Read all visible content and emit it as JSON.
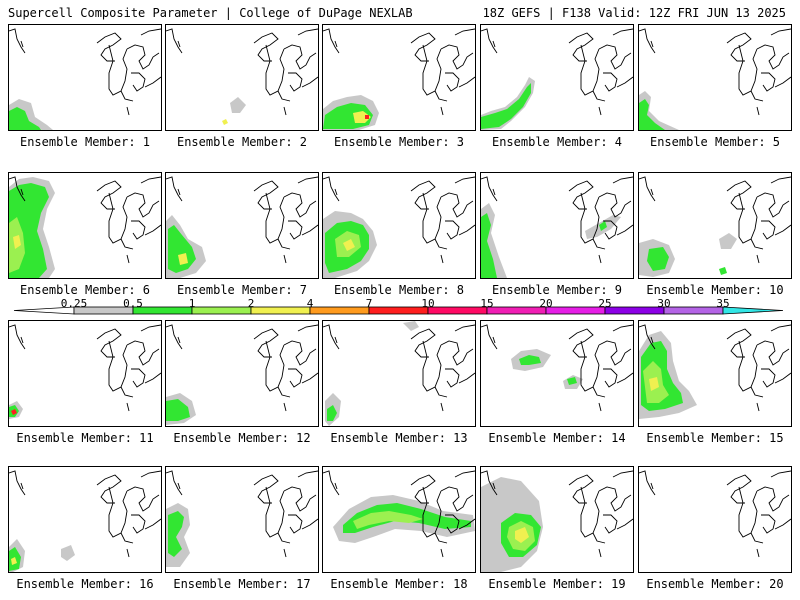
{
  "header": {
    "title": "Supercell Composite Parameter | College of DuPage NEXLAB",
    "run_info": "18Z GEFS | F138 Valid: 12Z FRI JUN 13 2025"
  },
  "members": [
    {
      "label": "Ensemble Member: 1"
    },
    {
      "label": "Ensemble Member: 2"
    },
    {
      "label": "Ensemble Member: 3"
    },
    {
      "label": "Ensemble Member: 4"
    },
    {
      "label": "Ensemble Member: 5"
    },
    {
      "label": "Ensemble Member: 6"
    },
    {
      "label": "Ensemble Member: 7"
    },
    {
      "label": "Ensemble Member: 8"
    },
    {
      "label": "Ensemble Member: 9"
    },
    {
      "label": "Ensemble Member: 10"
    },
    {
      "label": "Ensemble Member: 11"
    },
    {
      "label": "Ensemble Member: 12"
    },
    {
      "label": "Ensemble Member: 13"
    },
    {
      "label": "Ensemble Member: 14"
    },
    {
      "label": "Ensemble Member: 15"
    },
    {
      "label": "Ensemble Member: 16"
    },
    {
      "label": "Ensemble Member: 17"
    },
    {
      "label": "Ensemble Member: 18"
    },
    {
      "label": "Ensemble Member: 19"
    },
    {
      "label": "Ensemble Member: 20"
    }
  ],
  "colorbar": {
    "labels": [
      "0.25",
      "0.5",
      "1",
      "2",
      "4",
      "7",
      "10",
      "15",
      "20",
      "25",
      "30",
      "35"
    ],
    "colors": [
      "#c8c8c8",
      "#32e632",
      "#9bf050",
      "#f0f050",
      "#ff9b1e",
      "#ff1e1e",
      "#ff0a64",
      "#f01eb4",
      "#e61ee6",
      "#8c00e6",
      "#b464e6",
      "#32e6e6"
    ]
  },
  "shading_colors": {
    "light": "#c8c8c8",
    "green": "#32e632",
    "lime": "#9bf050",
    "yellow": "#f0f050",
    "red": "#ff1e1e"
  }
}
